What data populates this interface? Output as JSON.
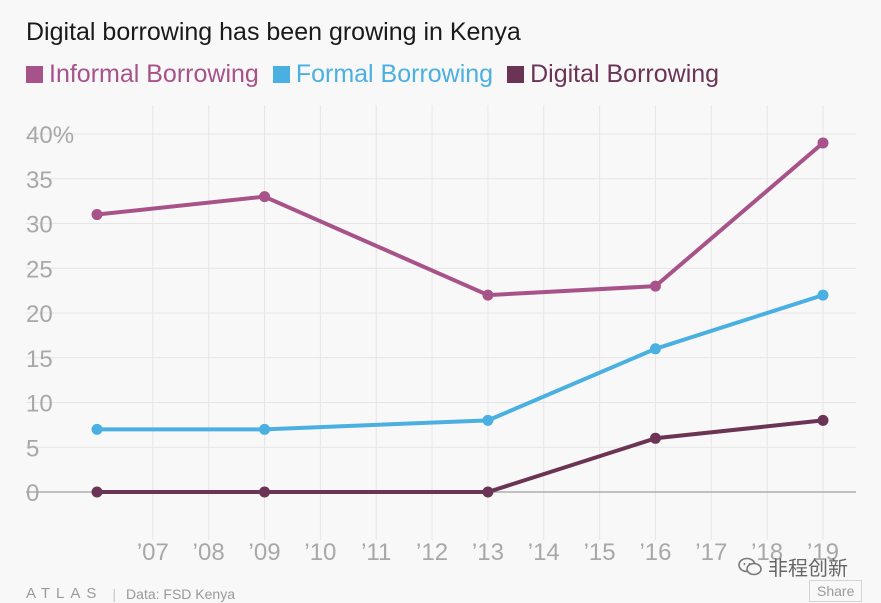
{
  "chart_data": {
    "type": "line",
    "title": "Digital borrowing has been growing in Kenya",
    "x": [
      2006,
      2009,
      2013,
      2016,
      2019
    ],
    "x_ticks": [
      2007,
      2008,
      2009,
      2010,
      2011,
      2012,
      2013,
      2014,
      2015,
      2016,
      2017,
      2018,
      2019
    ],
    "x_tick_labels": [
      "’07",
      "’08",
      "’09",
      "’10",
      "’11",
      "’12",
      "’13",
      "’14",
      "’15",
      "’16",
      "’17",
      "’18",
      "’19"
    ],
    "xlim": [
      2006,
      2019
    ],
    "y_ticks": [
      0,
      5,
      10,
      15,
      20,
      25,
      30,
      35,
      40
    ],
    "y_tick_labels": [
      "0",
      "5",
      "10",
      "15",
      "20",
      "25",
      "30",
      "35",
      "40%"
    ],
    "ylim": [
      0,
      40
    ],
    "grid": true,
    "legend_position": "top-left",
    "series": [
      {
        "name": "Informal Borrowing",
        "color": "#a8528a",
        "values": [
          31,
          33,
          22,
          23,
          39
        ]
      },
      {
        "name": "Formal Borrowing",
        "color": "#4ab0e2",
        "values": [
          7,
          7,
          8,
          16,
          22
        ]
      },
      {
        "name": "Digital Borrowing",
        "color": "#6b3455",
        "values": [
          0,
          0,
          0,
          6,
          8
        ]
      }
    ]
  },
  "footer": {
    "brand": "ATLAS",
    "source": "Data: FSD Kenya",
    "share_label": "Share"
  },
  "watermark": {
    "text": "非程创新"
  }
}
